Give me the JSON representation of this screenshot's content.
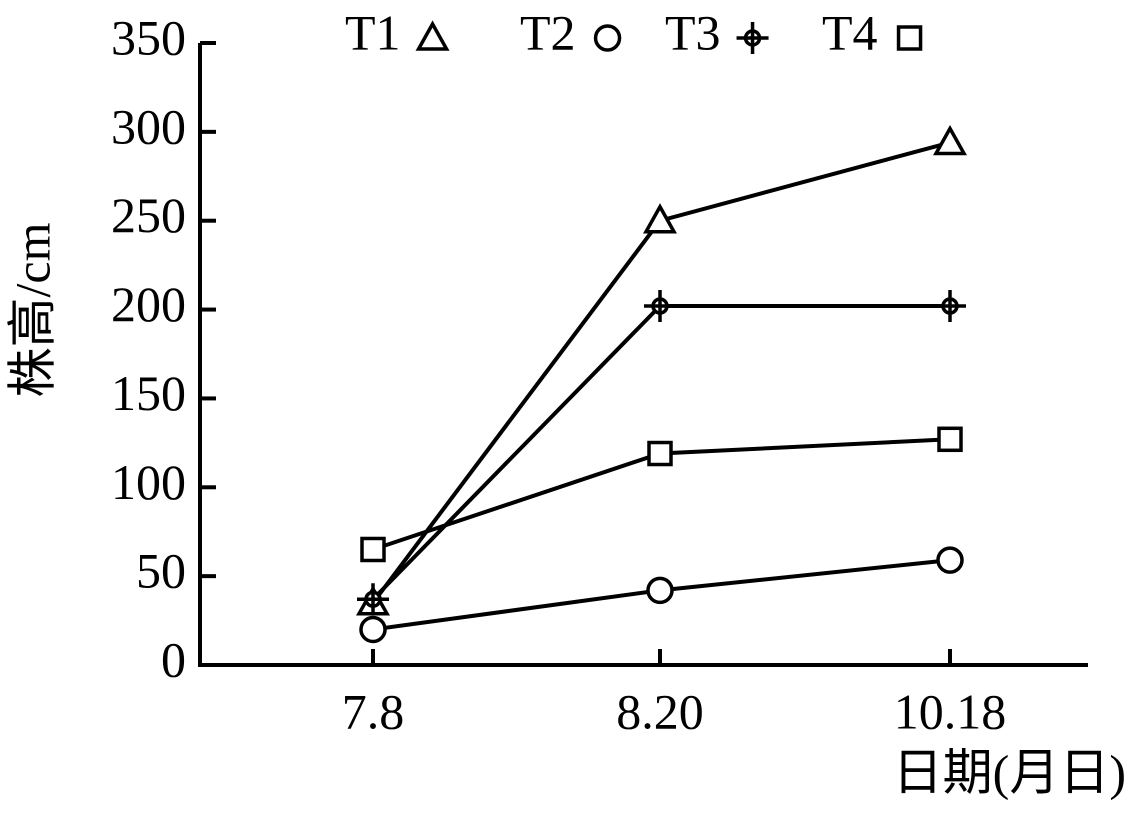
{
  "chart_data": {
    "type": "line",
    "y_label": "株高/cm",
    "x_label": "日期(月日)",
    "categories": [
      "7.8",
      "8.20",
      "10.18"
    ],
    "series": [
      {
        "name": "T1",
        "marker": "triangle",
        "color": "#000000",
        "values": [
          35,
          250,
          294
        ]
      },
      {
        "name": "T2",
        "marker": "circle",
        "color": "#000000",
        "values": [
          20,
          42,
          59
        ]
      },
      {
        "name": "T3",
        "marker": "plus-circle",
        "color": "#000000",
        "values": [
          37,
          202,
          202
        ]
      },
      {
        "name": "T4",
        "marker": "square",
        "color": "#000000",
        "values": [
          65,
          119,
          127
        ]
      }
    ],
    "ylim": [
      0,
      350
    ],
    "yticks": [
      0,
      50,
      100,
      150,
      200,
      250,
      300,
      350
    ],
    "grid": false
  }
}
